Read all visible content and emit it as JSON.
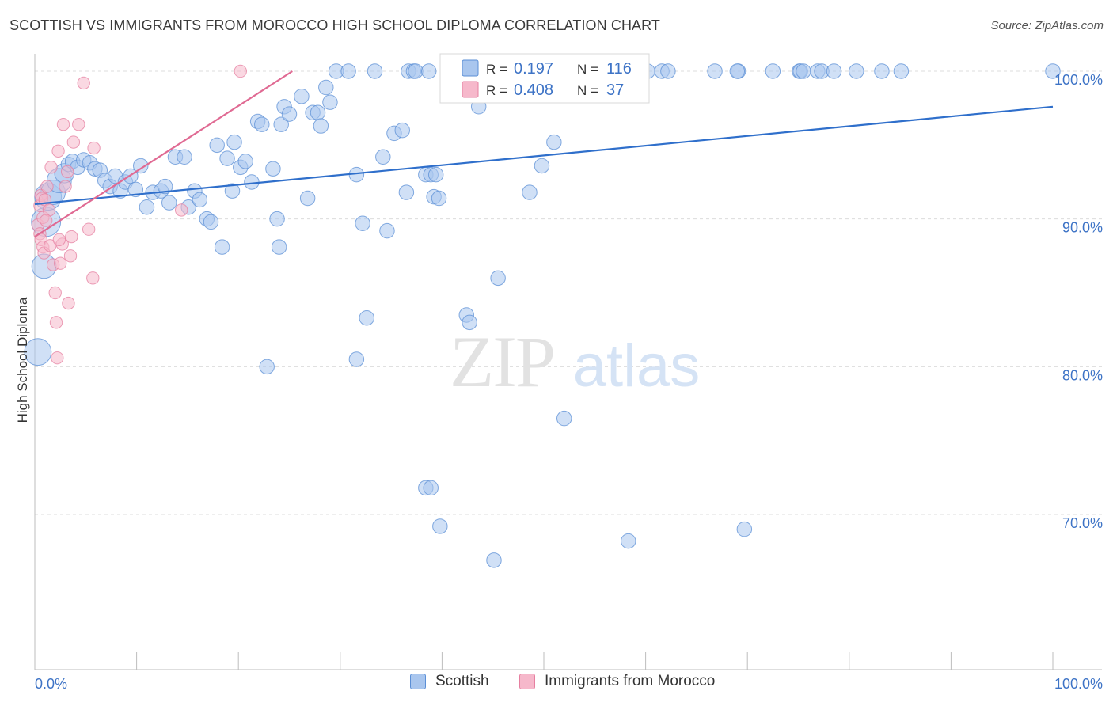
{
  "header": {
    "title": "SCOTTISH VS IMMIGRANTS FROM MOROCCO HIGH SCHOOL DIPLOMA CORRELATION CHART",
    "source": "Source: ZipAtlas.com"
  },
  "watermark": {
    "zip": "ZIP",
    "atlas": "atlas"
  },
  "colors": {
    "scottish_fill": "#a9c6ee",
    "scottish_stroke": "#5b8fd6",
    "scottish_line": "#2f6fcb",
    "morocco_fill": "#f6b8cb",
    "morocco_stroke": "#e67fa0",
    "morocco_line": "#e06a93",
    "tick_label": "#3d73c6",
    "grid": "#dcdcdc"
  },
  "chart_data": {
    "type": "scatter",
    "title": "SCOTTISH VS IMMIGRANTS FROM MOROCCO HIGH SCHOOL DIPLOMA CORRELATION CHART",
    "ylabel": "High School Diploma",
    "xlabel": "",
    "xlim": [
      0,
      100
    ],
    "ylim": [
      59.5,
      101.5
    ],
    "x_tick_labels": [
      {
        "value": 0,
        "label": "0.0%"
      },
      {
        "value": 100,
        "label": "100.0%"
      }
    ],
    "y_tick_labels": [
      {
        "value": 100,
        "label": "100.0%"
      },
      {
        "value": 90,
        "label": "90.0%"
      },
      {
        "value": 80,
        "label": "80.0%"
      },
      {
        "value": 70,
        "label": "70.0%"
      }
    ],
    "grid": true,
    "legend_position": "top-center",
    "legend": [
      {
        "r_label": "R =",
        "r_value": "0.197",
        "n_label": "N =",
        "n_value": "116",
        "color": "#a9c6ee"
      },
      {
        "r_label": "R =",
        "r_value": "0.408",
        "n_label": "N =",
        "n_value": "37",
        "color": "#f6b8cb"
      }
    ],
    "series": [
      {
        "name": "Scottish",
        "color": "#a9c6ee",
        "trend": {
          "x": [
            0,
            100
          ],
          "y": [
            91.0,
            97.6
          ]
        },
        "points": [
          [
            0.3,
            81.0,
            22
          ],
          [
            0.9,
            86.8,
            20
          ],
          [
            1.1,
            89.8,
            24
          ],
          [
            1.3,
            91.5,
            22
          ],
          [
            1.8,
            91.8,
            20
          ],
          [
            2.4,
            92.6,
            20
          ],
          [
            2.9,
            93.1,
            16
          ],
          [
            3.3,
            93.7,
            12
          ],
          [
            3.7,
            93.9,
            12
          ],
          [
            4.2,
            93.5,
            12
          ],
          [
            4.8,
            94.0,
            12
          ],
          [
            5.4,
            93.8,
            12
          ],
          [
            5.9,
            93.4,
            12
          ],
          [
            6.4,
            93.3,
            12
          ],
          [
            6.9,
            92.6,
            12
          ],
          [
            7.4,
            92.2,
            12
          ],
          [
            7.9,
            92.9,
            12
          ],
          [
            8.4,
            91.9,
            12
          ],
          [
            8.9,
            92.5,
            12
          ],
          [
            9.4,
            92.9,
            12
          ],
          [
            9.9,
            92.0,
            12
          ],
          [
            10.4,
            93.6,
            12
          ],
          [
            11.0,
            90.8,
            12
          ],
          [
            11.6,
            91.8,
            12
          ],
          [
            12.4,
            91.9,
            12
          ],
          [
            12.8,
            92.2,
            12
          ],
          [
            13.2,
            91.1,
            12
          ],
          [
            13.8,
            94.2,
            12
          ],
          [
            14.7,
            94.2,
            12
          ],
          [
            15.1,
            90.8,
            12
          ],
          [
            15.7,
            91.9,
            12
          ],
          [
            16.2,
            91.3,
            12
          ],
          [
            16.9,
            90.0,
            12
          ],
          [
            17.3,
            89.8,
            12
          ],
          [
            17.9,
            95.0,
            12
          ],
          [
            18.4,
            88.1,
            12
          ],
          [
            18.9,
            94.1,
            12
          ],
          [
            19.4,
            91.9,
            12
          ],
          [
            19.6,
            95.2,
            12
          ],
          [
            20.2,
            93.5,
            12
          ],
          [
            20.7,
            93.9,
            12
          ],
          [
            21.3,
            92.5,
            12
          ],
          [
            21.9,
            96.6,
            12
          ],
          [
            22.3,
            96.4,
            12
          ],
          [
            22.8,
            80.0,
            12
          ],
          [
            23.4,
            93.4,
            12
          ],
          [
            23.8,
            90.0,
            12
          ],
          [
            24.0,
            88.1,
            12
          ],
          [
            24.2,
            96.4,
            12
          ],
          [
            24.5,
            97.6,
            12
          ],
          [
            25.0,
            97.1,
            12
          ],
          [
            26.2,
            98.3,
            12
          ],
          [
            26.8,
            91.4,
            12
          ],
          [
            27.3,
            97.2,
            12
          ],
          [
            27.8,
            97.2,
            12
          ],
          [
            28.1,
            96.3,
            12
          ],
          [
            28.6,
            98.9,
            12
          ],
          [
            29.0,
            97.9,
            12
          ],
          [
            29.6,
            100.0,
            12
          ],
          [
            30.8,
            100.0,
            12
          ],
          [
            31.6,
            93.0,
            12
          ],
          [
            32.2,
            89.7,
            12
          ],
          [
            32.6,
            83.3,
            12
          ],
          [
            31.6,
            80.5,
            12
          ],
          [
            33.4,
            100.0,
            12
          ],
          [
            34.2,
            94.2,
            12
          ],
          [
            34.6,
            89.2,
            12
          ],
          [
            35.3,
            95.8,
            12
          ],
          [
            36.1,
            96.0,
            12
          ],
          [
            36.5,
            91.8,
            12
          ],
          [
            36.7,
            100.0,
            12
          ],
          [
            37.2,
            100.0,
            12
          ],
          [
            37.4,
            100.0,
            12
          ],
          [
            38.4,
            71.8,
            12
          ],
          [
            38.9,
            71.8,
            12
          ],
          [
            38.4,
            93.0,
            12
          ],
          [
            38.9,
            93.0,
            12
          ],
          [
            38.7,
            100.0,
            12
          ],
          [
            39.2,
            91.5,
            12
          ],
          [
            39.4,
            93.0,
            12
          ],
          [
            39.8,
            69.2,
            12
          ],
          [
            39.7,
            91.4,
            12
          ],
          [
            41.4,
            100.0,
            12
          ],
          [
            42.2,
            100.0,
            12
          ],
          [
            42.4,
            83.5,
            12
          ],
          [
            42.7,
            83.0,
            12
          ],
          [
            43.6,
            97.6,
            12
          ],
          [
            44.4,
            98.8,
            12
          ],
          [
            45.1,
            66.9,
            12
          ],
          [
            45.5,
            86.0,
            12
          ],
          [
            46.9,
            100.0,
            12
          ],
          [
            48.2,
            100.0,
            12
          ],
          [
            48.6,
            91.8,
            12
          ],
          [
            49.8,
            93.6,
            12
          ],
          [
            51.0,
            95.2,
            12
          ],
          [
            52.0,
            76.5,
            12
          ],
          [
            53.3,
            98.6,
            12
          ],
          [
            54.7,
            100.0,
            12
          ],
          [
            56.4,
            100.0,
            12
          ],
          [
            58.0,
            100.0,
            12
          ],
          [
            58.3,
            68.2,
            12
          ],
          [
            60.2,
            100.0,
            12
          ],
          [
            61.6,
            100.0,
            12
          ],
          [
            62.2,
            100.0,
            12
          ],
          [
            66.8,
            100.0,
            12
          ],
          [
            69.1,
            100.0,
            12
          ],
          [
            69.7,
            69.0,
            12
          ],
          [
            69.0,
            100.0,
            12
          ],
          [
            72.5,
            100.0,
            12
          ],
          [
            75.1,
            100.0,
            12
          ],
          [
            75.2,
            100.0,
            12
          ],
          [
            75.5,
            100.0,
            12
          ],
          [
            76.9,
            100.0,
            12
          ],
          [
            77.3,
            100.0,
            12
          ],
          [
            78.5,
            100.0,
            12
          ],
          [
            80.7,
            100.0,
            12
          ],
          [
            83.2,
            100.0,
            12
          ],
          [
            85.1,
            100.0,
            12
          ],
          [
            100.0,
            100.0,
            12
          ]
        ]
      },
      {
        "name": "Immigrants from Morocco",
        "color": "#f6b8cb",
        "trend": {
          "x": [
            0,
            25.3
          ],
          "y": [
            88.8,
            100.0
          ]
        },
        "points": [
          [
            0.3,
            89.6,
            10
          ],
          [
            0.5,
            90.9,
            10
          ],
          [
            0.5,
            89.0,
            10
          ],
          [
            0.6,
            91.6,
            10
          ],
          [
            0.6,
            88.6,
            10
          ],
          [
            0.7,
            91.4,
            10
          ],
          [
            0.8,
            90.1,
            10
          ],
          [
            0.8,
            88.1,
            10
          ],
          [
            0.9,
            87.7,
            10
          ],
          [
            1.0,
            91.3,
            10
          ],
          [
            1.2,
            92.2,
            10
          ],
          [
            1.4,
            90.6,
            10
          ],
          [
            1.5,
            88.2,
            10
          ],
          [
            1.6,
            93.5,
            10
          ],
          [
            1.8,
            86.9,
            10
          ],
          [
            2.0,
            85.0,
            10
          ],
          [
            2.1,
            83.0,
            10
          ],
          [
            2.2,
            80.6,
            10
          ],
          [
            2.3,
            94.6,
            10
          ],
          [
            2.5,
            87.0,
            10
          ],
          [
            2.7,
            88.3,
            10
          ],
          [
            2.8,
            96.4,
            10
          ],
          [
            3.0,
            92.2,
            10
          ],
          [
            3.2,
            93.2,
            10
          ],
          [
            3.3,
            84.3,
            10
          ],
          [
            3.5,
            87.5,
            10
          ],
          [
            3.6,
            88.8,
            10
          ],
          [
            3.8,
            95.2,
            10
          ],
          [
            4.3,
            96.4,
            10
          ],
          [
            4.8,
            99.2,
            10
          ],
          [
            5.3,
            89.3,
            10
          ],
          [
            5.7,
            86.0,
            10
          ],
          [
            5.8,
            94.8,
            10
          ],
          [
            14.4,
            90.6,
            10
          ],
          [
            20.2,
            100.0,
            10
          ],
          [
            2.4,
            88.6,
            10
          ],
          [
            1.1,
            89.9,
            10
          ]
        ]
      }
    ]
  }
}
